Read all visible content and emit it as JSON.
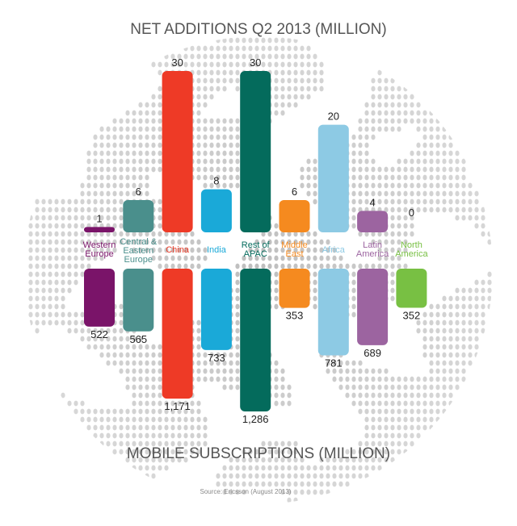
{
  "title": "NET ADDITIONS Q2 2013 (MILLION)",
  "subtitle": "MOBILE SUBSCRIPTIONS (MILLION)",
  "source": "Source: Ericsson (August 2013)",
  "chart_data": {
    "type": "bar",
    "categories": [
      [
        "Western",
        "Europe"
      ],
      [
        "Central &",
        "Eastern",
        "Europe"
      ],
      [
        "China"
      ],
      [
        "India"
      ],
      [
        "Rest of",
        "APAC"
      ],
      [
        "Middle",
        "East"
      ],
      [
        "Africa"
      ],
      [
        "Latin",
        "America"
      ],
      [
        "North",
        "America"
      ]
    ],
    "colors": [
      "#7a1469",
      "#4a8f8c",
      "#ee3a26",
      "#1aa9d8",
      "#046b5c",
      "#f58a1f",
      "#8dcae4",
      "#9c64a0",
      "#78c043"
    ],
    "series": [
      {
        "name": "NET ADDITIONS Q2 2013 (MILLION)",
        "values": [
          1,
          6,
          30,
          8,
          30,
          6,
          20,
          4,
          0
        ],
        "labels": [
          "1",
          "6",
          "30",
          "8",
          "30",
          "6",
          "20",
          "4",
          "0"
        ]
      },
      {
        "name": "MOBILE SUBSCRIPTIONS (MILLION)",
        "values": [
          522,
          565,
          1171,
          733,
          1286,
          353,
          781,
          689,
          352
        ],
        "labels": [
          "522",
          "565",
          "1,171",
          "733",
          "1,286",
          "353",
          "781",
          "689",
          "352"
        ]
      }
    ],
    "ylim_top": [
      0,
      30
    ],
    "ylim_bottom": [
      0,
      1286
    ]
  }
}
